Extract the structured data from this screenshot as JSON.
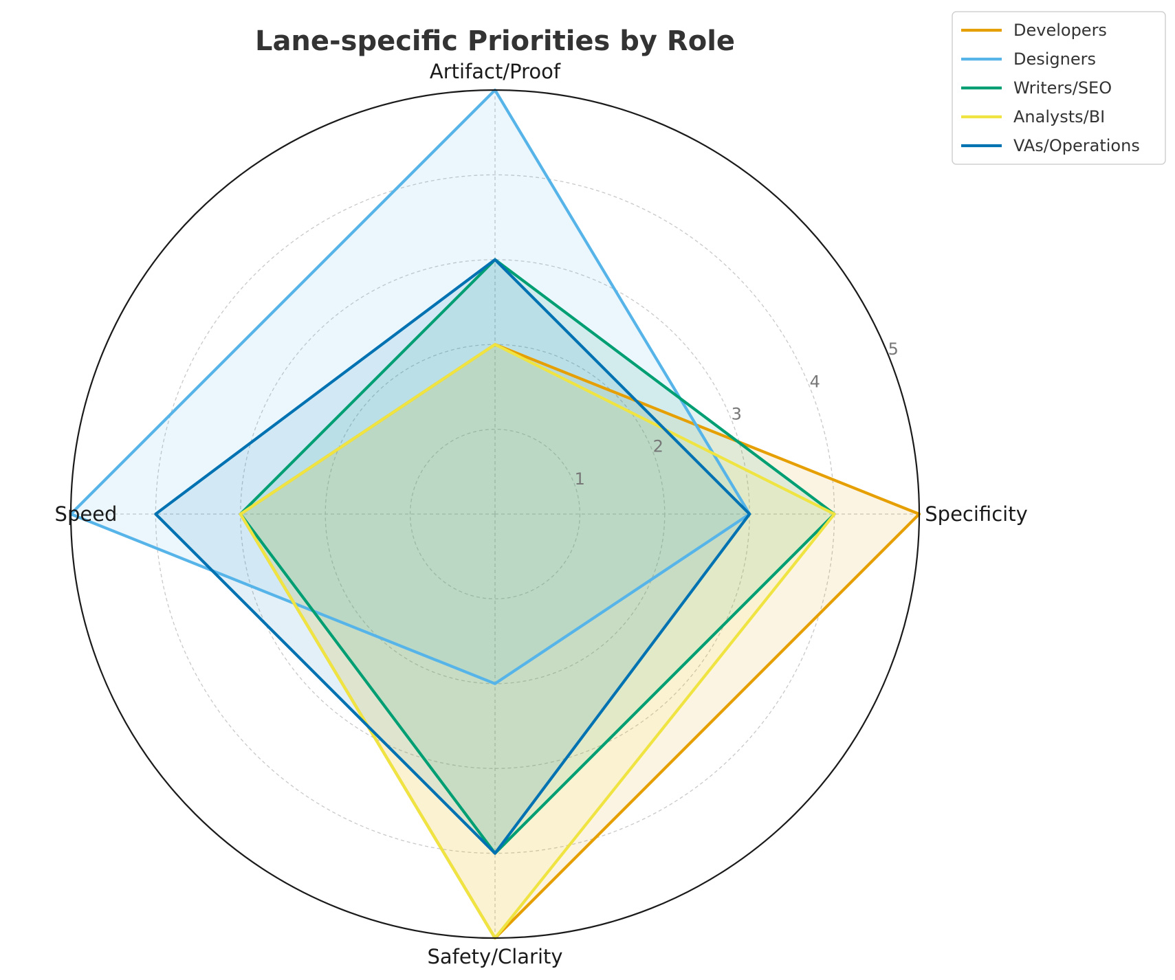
{
  "chart_data": {
    "type": "radar",
    "title": "Lane-specific Priorities by Role",
    "axes": [
      "Specificity",
      "Artifact/Proof",
      "Speed",
      "Safety/Clarity"
    ],
    "rlim": [
      0,
      5
    ],
    "rticks": [
      "1",
      "2",
      "3",
      "4",
      "5"
    ],
    "grid": true,
    "legend": "top-right",
    "series": [
      {
        "name": "Developers",
        "color": "#E69F00",
        "values": [
          5,
          2,
          3,
          5
        ]
      },
      {
        "name": "Designers",
        "color": "#56B4E9",
        "values": [
          3,
          5,
          5,
          2
        ]
      },
      {
        "name": "Writers/SEO",
        "color": "#009E73",
        "values": [
          4,
          3,
          3,
          4
        ]
      },
      {
        "name": "Analysts/BI",
        "color": "#F0E442",
        "values": [
          4,
          2,
          3,
          5
        ]
      },
      {
        "name": "VAs/Operations",
        "color": "#0072B2",
        "values": [
          3,
          3,
          4,
          4
        ]
      }
    ]
  }
}
